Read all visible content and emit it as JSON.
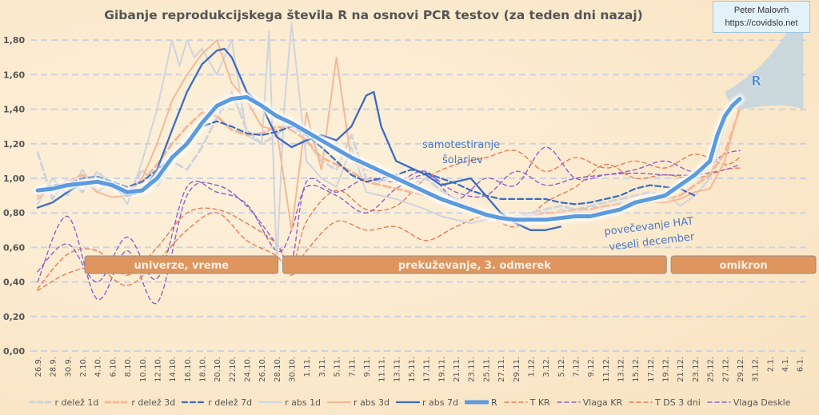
{
  "title": "Gibanje reprodukcijskega števila R na osnovi PCR testov (za teden dni nazaj)",
  "credit": {
    "author": "Peter Malovrh",
    "url": "https://covidslo.net"
  },
  "colors": {
    "r_delez_1d": "#cfd4dc",
    "r_delez_3d": "#f5b896",
    "r_delez_7d": "#3a6cc4",
    "r_abs_1d": "#cfd4dc",
    "r_abs_3d": "#f5b896",
    "r_abs_7d": "#3a6cc4",
    "R": "#5b9bde",
    "T_KR": "#ee7a55",
    "Vlaga_KR": "#9060c8",
    "T_DS_3dni": "#ee7a55",
    "Vlaga_Deskle": "#9060c8",
    "band": "#de965e",
    "grid": "#cdd3df",
    "forecast": "#b9d3e3"
  },
  "chart_data": {
    "type": "line",
    "title": "Gibanje reprodukcijskega števila R na osnovi PCR testov (za teden dni nazaj)",
    "xlabel": "",
    "ylabel": "",
    "ylim": [
      0,
      1.8
    ],
    "yticks": [
      "0,00",
      "0,20",
      "0,40",
      "0,60",
      "0,80",
      "1,00",
      "1,20",
      "1,40",
      "1,60",
      "1,80"
    ],
    "ytick_values": [
      0,
      0.2,
      0.4,
      0.6,
      0.8,
      1.0,
      1.2,
      1.4,
      1.6,
      1.8
    ],
    "grid": true,
    "legend_position": "bottom",
    "x_day_range": [
      0,
      102
    ],
    "xtick_labels": [
      "26.9.",
      "28.9.",
      "30.9.",
      "2.10.",
      "4.10.",
      "6.10.",
      "8.10.",
      "10.10.",
      "12.10.",
      "14.10.",
      "16.10.",
      "18.10.",
      "20.10.",
      "22.10.",
      "24.10.",
      "26.10.",
      "28.10.",
      "30.10.",
      "1.11.",
      "3.11.",
      "5.11.",
      "7.11.",
      "9.11.",
      "11.11.",
      "13.11.",
      "15.11.",
      "17.11.",
      "19.11.",
      "21.11.",
      "23.11.",
      "25.11.",
      "27.11.",
      "29.11.",
      "1.12.",
      "3.12.",
      "5.12.",
      "7.12.",
      "9.12.",
      "11.12.",
      "13.12.",
      "15.12.",
      "17.12.",
      "19.12.",
      "21.12.",
      "23.12.",
      "25.12.",
      "27.12.",
      "29.12.",
      "31.12.",
      "2.1.",
      "4.1.",
      "6.1."
    ],
    "x_note": "series x values are day offsets from 26.9.",
    "series": [
      {
        "name": "r delež 1d",
        "style": "dashed-thick",
        "x": [
          0,
          2,
          4,
          6,
          8,
          10,
          12,
          14,
          16,
          18,
          20,
          22,
          24,
          26,
          28,
          30,
          32,
          34,
          36,
          38,
          40,
          42,
          44,
          46,
          48,
          50,
          52,
          54,
          56,
          58,
          60,
          62,
          64,
          66,
          68,
          70,
          72,
          74,
          76,
          78,
          80,
          82,
          84,
          86,
          88,
          90,
          92,
          94
        ],
        "values": [
          1.15,
          0.88,
          1.0,
          0.92,
          1.04,
          0.96,
          0.9,
          1.05,
          0.95,
          1.1,
          1.05,
          1.18,
          1.35,
          1.5,
          1.28,
          1.2,
          1.25,
          1.33,
          1.22,
          1.1,
          1.05,
          1.25,
          1.0,
          0.98,
          1.02,
          0.96,
          1.0,
          0.93,
          0.88,
          0.82,
          0.8,
          0.76,
          0.78,
          0.8,
          0.82,
          0.84,
          0.82,
          0.84,
          0.86,
          0.88,
          0.9,
          0.92,
          0.9,
          0.94,
          1.0,
          1.08,
          1.35,
          1.5
        ]
      },
      {
        "name": "r delež 3d",
        "style": "dashed-thick",
        "x": [
          0,
          2,
          4,
          6,
          8,
          10,
          12,
          14,
          16,
          18,
          20,
          22,
          24,
          26,
          28,
          30,
          32,
          34,
          36,
          38,
          40,
          42,
          44,
          46,
          48,
          50,
          52,
          54,
          56,
          58,
          60,
          62,
          64,
          66,
          68,
          70,
          72,
          74,
          76,
          78,
          80,
          82,
          84,
          86,
          88,
          90,
          92,
          94
        ],
        "values": [
          0.9,
          0.94,
          0.98,
          1.02,
          0.98,
          0.94,
          0.93,
          0.98,
          1.08,
          1.2,
          1.3,
          1.38,
          1.36,
          1.28,
          1.25,
          1.26,
          1.3,
          1.28,
          1.22,
          1.12,
          1.08,
          1.04,
          0.98,
          0.96,
          0.94,
          0.92,
          0.9,
          0.88,
          0.86,
          0.84,
          0.8,
          0.78,
          0.77,
          0.78,
          0.8,
          0.8,
          0.82,
          0.82,
          0.84,
          0.85,
          0.86,
          0.88,
          0.88,
          0.9,
          0.96,
          1.02,
          1.15,
          1.4
        ]
      },
      {
        "name": "r delež 7d",
        "style": "dashed",
        "x": [
          0,
          2,
          4,
          6,
          8,
          10,
          12,
          14,
          16,
          18,
          20,
          22,
          24,
          26,
          28,
          30,
          32,
          34,
          36,
          38,
          40,
          42,
          44,
          46,
          48,
          50,
          52,
          54,
          56,
          58,
          60,
          62,
          64,
          66,
          68,
          70,
          72,
          74,
          76,
          78,
          80,
          82,
          84,
          86,
          88
        ],
        "values": [
          0.93,
          0.96,
          0.97,
          1.0,
          1.01,
          0.98,
          0.95,
          0.98,
          1.05,
          1.12,
          1.22,
          1.3,
          1.33,
          1.3,
          1.26,
          1.25,
          1.27,
          1.3,
          1.25,
          1.18,
          1.1,
          1.02,
          0.98,
          1.0,
          1.02,
          1.05,
          1.03,
          1.0,
          0.97,
          0.93,
          0.9,
          0.88,
          0.88,
          0.88,
          0.88,
          0.86,
          0.85,
          0.86,
          0.88,
          0.9,
          0.94,
          0.96,
          0.95,
          0.94,
          0.9
        ]
      },
      {
        "name": "r abs 1d",
        "style": "solid-thin",
        "x": [
          0,
          2,
          4,
          6,
          8,
          10,
          12,
          14,
          16,
          18,
          19,
          20,
          21,
          22,
          24,
          26,
          28,
          30,
          31,
          32,
          33,
          34,
          36,
          38,
          40,
          42,
          44,
          46,
          48,
          50,
          52,
          54,
          56,
          58,
          60,
          62,
          64,
          66,
          68,
          70,
          72,
          74,
          76,
          78,
          80,
          82,
          84,
          86,
          88,
          90,
          92,
          94
        ],
        "values": [
          0.85,
          1.0,
          0.9,
          1.05,
          0.92,
          0.98,
          0.85,
          1.1,
          1.4,
          1.8,
          1.65,
          1.8,
          1.7,
          1.75,
          1.6,
          1.8,
          1.25,
          1.2,
          1.85,
          0.5,
          1.4,
          1.9,
          1.1,
          1.0,
          0.95,
          1.18,
          0.92,
          0.9,
          0.88,
          0.85,
          0.82,
          0.78,
          0.76,
          0.74,
          0.76,
          0.78,
          0.76,
          0.8,
          0.76,
          0.82,
          0.8,
          0.84,
          0.82,
          0.86,
          0.84,
          0.88,
          0.92,
          0.84,
          0.9,
          1.0,
          1.3,
          1.55
        ]
      },
      {
        "name": "r abs 3d",
        "style": "solid-thin",
        "x": [
          0,
          2,
          4,
          6,
          8,
          10,
          12,
          14,
          16,
          18,
          20,
          22,
          24,
          26,
          28,
          30,
          32,
          34,
          36,
          38,
          40,
          42,
          44,
          46,
          48,
          50,
          52,
          54,
          56,
          58,
          60,
          62,
          64,
          66,
          68,
          70,
          72,
          74,
          76,
          78,
          80,
          82,
          84,
          86,
          88,
          90,
          92,
          94
        ],
        "values": [
          0.88,
          0.95,
          0.96,
          0.99,
          0.92,
          0.89,
          0.9,
          1.0,
          1.2,
          1.45,
          1.6,
          1.72,
          1.8,
          1.55,
          1.45,
          1.3,
          1.28,
          0.7,
          1.38,
          1.05,
          1.7,
          1.1,
          1.05,
          1.02,
          1.0,
          0.95,
          0.92,
          0.88,
          0.85,
          0.82,
          0.78,
          0.76,
          0.74,
          0.76,
          0.78,
          0.78,
          0.8,
          0.8,
          0.82,
          0.82,
          0.84,
          0.86,
          0.86,
          0.88,
          0.92,
          0.94,
          1.1,
          1.42
        ]
      },
      {
        "name": "r abs 7d",
        "style": "solid",
        "x": [
          0,
          2,
          4,
          6,
          8,
          10,
          12,
          14,
          16,
          18,
          20,
          22,
          24,
          25,
          26,
          28,
          30,
          32,
          34,
          36,
          38,
          40,
          42,
          44,
          45,
          46,
          48,
          50,
          52,
          54,
          56,
          58,
          60,
          62,
          64,
          66,
          68,
          70
        ],
        "values": [
          0.83,
          0.86,
          0.92,
          0.97,
          0.98,
          0.95,
          0.9,
          0.92,
          1.05,
          1.28,
          1.5,
          1.66,
          1.74,
          1.75,
          1.7,
          1.5,
          1.42,
          1.24,
          1.18,
          1.22,
          1.25,
          1.22,
          1.3,
          1.48,
          1.5,
          1.3,
          1.1,
          1.06,
          1.02,
          0.96,
          0.98,
          1.0,
          0.9,
          0.8,
          0.74,
          0.7,
          0.7,
          0.72
        ]
      },
      {
        "name": "R",
        "style": "solid-thick",
        "x": [
          0,
          2,
          4,
          6,
          8,
          10,
          12,
          14,
          16,
          18,
          20,
          22,
          24,
          26,
          28,
          30,
          32,
          34,
          36,
          38,
          40,
          42,
          44,
          46,
          48,
          50,
          52,
          54,
          56,
          58,
          60,
          62,
          64,
          66,
          68,
          70,
          72,
          74,
          76,
          78,
          80,
          82,
          84,
          86,
          88,
          90,
          91,
          92,
          93,
          94
        ],
        "values": [
          0.93,
          0.94,
          0.96,
          0.97,
          0.98,
          0.96,
          0.92,
          0.93,
          1.0,
          1.12,
          1.2,
          1.32,
          1.42,
          1.46,
          1.47,
          1.42,
          1.36,
          1.32,
          1.27,
          1.22,
          1.17,
          1.12,
          1.08,
          1.04,
          1.0,
          0.96,
          0.92,
          0.88,
          0.85,
          0.82,
          0.79,
          0.77,
          0.76,
          0.76,
          0.76,
          0.77,
          0.78,
          0.78,
          0.8,
          0.82,
          0.86,
          0.88,
          0.9,
          0.96,
          1.02,
          1.1,
          1.25,
          1.36,
          1.42,
          1.46
        ]
      },
      {
        "name": "T KR",
        "style": "dashed-red",
        "x": [
          0,
          4,
          8,
          12,
          16,
          20,
          24,
          28,
          32,
          34,
          36,
          40,
          44,
          48,
          52,
          56,
          60,
          64,
          68,
          72,
          76,
          80,
          84,
          88,
          92,
          94
        ],
        "values": [
          0.36,
          0.56,
          0.58,
          0.44,
          0.6,
          0.8,
          0.82,
          0.74,
          0.62,
          0.48,
          0.75,
          0.93,
          0.82,
          0.84,
          1.0,
          1.08,
          1.12,
          1.16,
          1.04,
          1.12,
          1.06,
          1.1,
          1.06,
          1.14,
          1.08,
          1.12
        ]
      },
      {
        "name": "Vlaga KR",
        "style": "dashed-purple",
        "x": [
          0,
          4,
          8,
          12,
          16,
          20,
          24,
          28,
          32,
          34,
          36,
          40,
          44,
          48,
          52,
          56,
          60,
          64,
          68,
          72,
          76,
          80,
          84,
          88,
          92,
          94
        ],
        "values": [
          0.4,
          0.78,
          0.3,
          0.58,
          0.28,
          0.9,
          0.96,
          0.84,
          0.62,
          0.52,
          0.98,
          0.92,
          1.0,
          0.98,
          1.04,
          0.88,
          1.0,
          0.96,
          1.18,
          1.0,
          1.02,
          1.05,
          1.1,
          1.04,
          1.14,
          1.16
        ]
      },
      {
        "name": "T DS 3 dni",
        "style": "dashed-red",
        "x": [
          0,
          4,
          8,
          12,
          16,
          20,
          24,
          28,
          32,
          34,
          36,
          40,
          44,
          48,
          52,
          56,
          60,
          64,
          68,
          72,
          76,
          80,
          84,
          88,
          92,
          94
        ],
        "values": [
          0.35,
          0.45,
          0.48,
          0.38,
          0.52,
          0.7,
          0.8,
          0.64,
          0.55,
          0.44,
          0.58,
          0.75,
          0.7,
          0.72,
          0.64,
          0.72,
          0.78,
          0.72,
          0.86,
          0.95,
          1.08,
          1.0,
          1.02,
          1.0,
          1.05,
          1.06
        ]
      },
      {
        "name": "Vlaga Deskle",
        "style": "dashed-purple",
        "x": [
          0,
          4,
          8,
          12,
          16,
          20,
          24,
          28,
          32,
          34,
          36,
          40,
          44,
          48,
          52,
          56,
          60,
          64,
          68,
          72,
          76,
          80,
          84,
          88,
          92,
          94
        ],
        "values": [
          0.46,
          0.62,
          0.4,
          0.66,
          0.42,
          0.95,
          0.92,
          0.85,
          0.58,
          0.7,
          0.95,
          0.9,
          0.8,
          0.94,
          1.02,
          0.92,
          0.9,
          1.04,
          0.96,
          1.0,
          1.02,
          1.03,
          1.02,
          1.02,
          1.05,
          1.08
        ]
      }
    ],
    "bands": [
      {
        "label": "univerze, vreme",
        "from_day": 6,
        "to_day": 32.5
      },
      {
        "label": "prekuževanje, 3. odmerek",
        "from_day": 32.5,
        "to_day": 84.5
      },
      {
        "label": "omikron",
        "from_day": 84.5,
        "to_day": 105
      }
    ],
    "annotations": [
      {
        "text": "samotestiranje"
      },
      {
        "text": "šolarjev"
      },
      {
        "text": "povečevanje HAT"
      },
      {
        "text": "veseli december"
      },
      {
        "text": "R"
      }
    ]
  },
  "legend": [
    {
      "label": "r delež 1d"
    },
    {
      "label": "r delež 3d"
    },
    {
      "label": "r delež 7d"
    },
    {
      "label": "r abs 1d"
    },
    {
      "label": "r abs 3d"
    },
    {
      "label": "r abs 7d"
    },
    {
      "label": "R"
    },
    {
      "label": "T KR"
    },
    {
      "label": "Vlaga KR"
    },
    {
      "label": "T DS 3 dni"
    },
    {
      "label": "Vlaga Deskle"
    }
  ]
}
